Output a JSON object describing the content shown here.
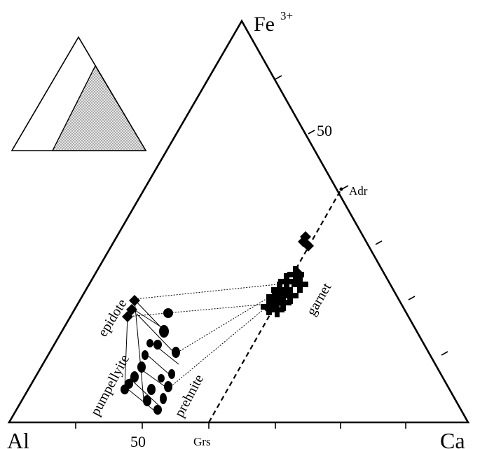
{
  "vertices": {
    "top": "Fe",
    "top_sup": "3+",
    "left": "Al",
    "right": "Ca"
  },
  "tick_labels": {
    "right_edge_50": "50",
    "bottom_edge_50": "50"
  },
  "endmembers": {
    "andradite": "Adr",
    "grossular": "Grs"
  },
  "mineral_labels": {
    "epidote": "epidote",
    "pumpellyite": "pumpellyite",
    "prehnite": "prehnite",
    "garnet": "garnet"
  },
  "colors": {
    "ink": "#000000",
    "inset_fill": "#cfcfcf",
    "background": "#ffffff"
  }
}
